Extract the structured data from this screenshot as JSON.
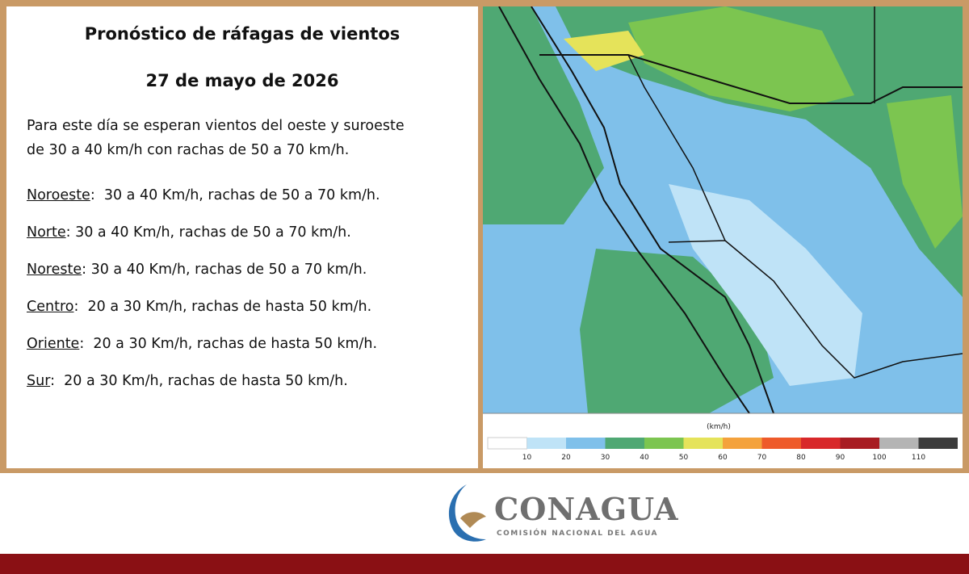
{
  "header": {
    "title": "Pronóstico de ráfagas de vientos",
    "date": "27 de mayo de 2026"
  },
  "intro": [
    "Para este día se esperan vientos del oeste y suroeste",
    "de 30 a 40 km/h con rachas de 50 a 70 km/h."
  ],
  "regions": [
    {
      "name": "Noroeste",
      "text": ":  30 a 40 Km/h, rachas de 50 a 70 km/h."
    },
    {
      "name": "Norte",
      "text": ": 30 a 40 Km/h, rachas de 50 a 70 km/h."
    },
    {
      "name": "Noreste",
      "text": ": 30 a 40 Km/h, rachas de 50 a 70 km/h."
    },
    {
      "name": "Centro",
      "text": ":  20 a 30 Km/h, rachas de hasta 50 km/h."
    },
    {
      "name": "Oriente",
      "text": ":  20 a 30 Km/h, rachas de hasta 50 km/h."
    },
    {
      "name": "Sur",
      "text": ":  20 a 30 Km/h, rachas de hasta 50 km/h."
    }
  ],
  "legend": {
    "unit": "(km/h)",
    "ticks": [
      10,
      20,
      30,
      40,
      50,
      60,
      70,
      80,
      90,
      100,
      110
    ],
    "colors": [
      "#ffffff",
      "#bfe3f7",
      "#7fc0ea",
      "#4fa873",
      "#7cc550",
      "#e5e35a",
      "#f4a23c",
      "#ee5a2a",
      "#d8282a",
      "#a81c22",
      "#b4b4b4",
      "#3c3c3c"
    ]
  },
  "logo": {
    "name": "CONAGUA",
    "subtitle": "COMISIÓN NACIONAL DEL AGUA"
  }
}
